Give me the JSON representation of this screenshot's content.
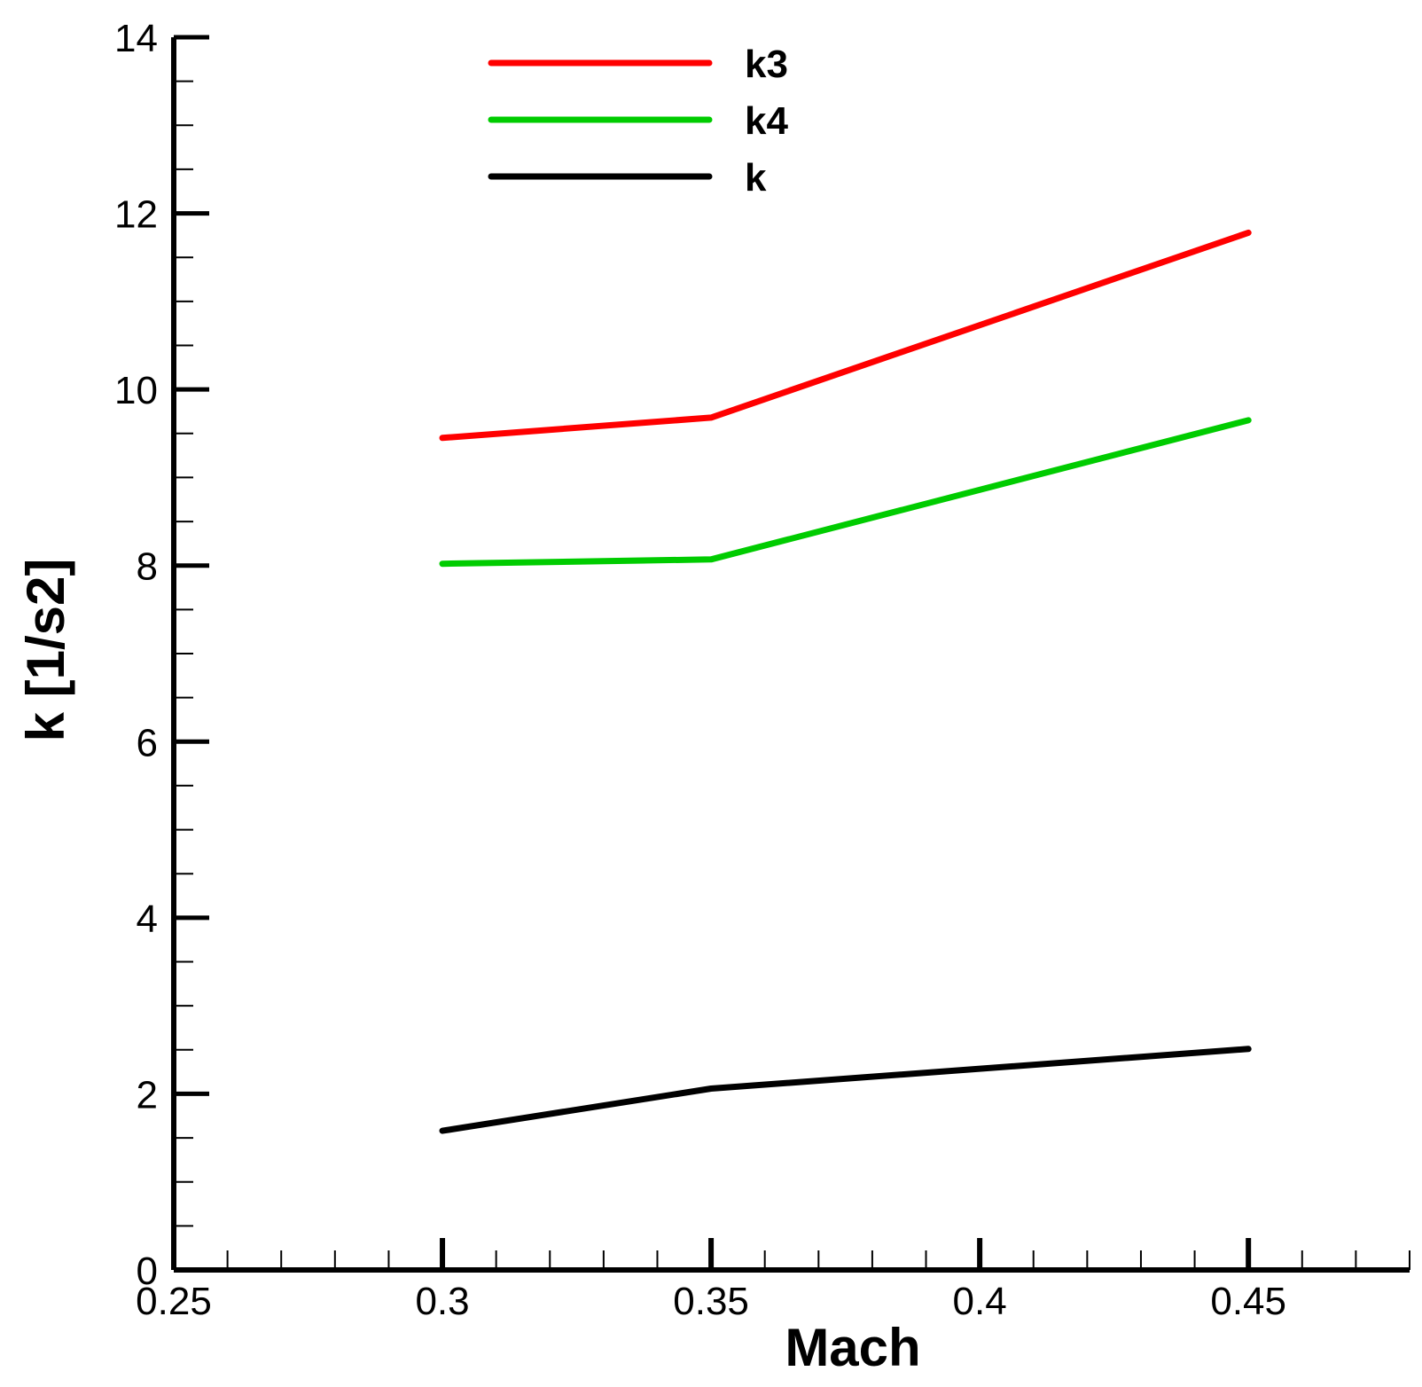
{
  "chart_data": {
    "type": "line",
    "xlabel": "Mach",
    "ylabel": "k [1/s2]",
    "xlim": [
      0.25,
      0.48
    ],
    "ylim": [
      0,
      14
    ],
    "x_ticks": [
      {
        "value": 0.25,
        "label": "0.25"
      },
      {
        "value": 0.3,
        "label": "0.3"
      },
      {
        "value": 0.35,
        "label": "0.35"
      },
      {
        "value": 0.4,
        "label": "0.4"
      },
      {
        "value": 0.45,
        "label": "0.45"
      }
    ],
    "y_ticks": [
      {
        "value": 0,
        "label": "0"
      },
      {
        "value": 2,
        "label": "2"
      },
      {
        "value": 4,
        "label": "4"
      },
      {
        "value": 6,
        "label": "6"
      },
      {
        "value": 8,
        "label": "8"
      },
      {
        "value": 10,
        "label": "10"
      },
      {
        "value": 12,
        "label": "12"
      },
      {
        "value": 14,
        "label": "14"
      }
    ],
    "x_minor_step": 0.01,
    "y_minor_step": 0.5,
    "grid": false,
    "legend_position": "top-center",
    "x": [
      0.3,
      0.35,
      0.45
    ],
    "series": [
      {
        "name": "k3",
        "color": "#ff0000",
        "values": [
          9.45,
          9.68,
          11.78
        ]
      },
      {
        "name": "k4",
        "color": "#00cc00",
        "values": [
          8.02,
          8.07,
          9.65
        ]
      },
      {
        "name": "k",
        "color": "#000000",
        "values": [
          1.58,
          2.06,
          2.51
        ]
      }
    ]
  }
}
